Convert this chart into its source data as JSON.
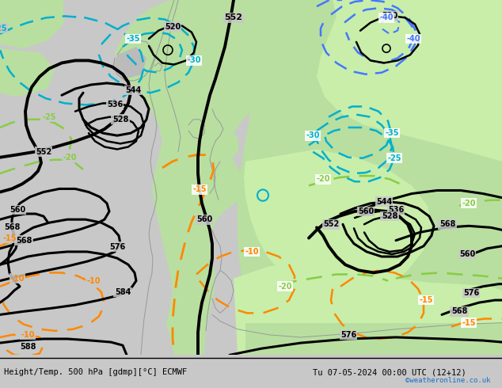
{
  "title_left": "Height/Temp. 500 hPa [gdmp][°C] ECMWF",
  "title_right": "Tu 07-05-2024 00:00 UTC (12+12)",
  "credit": "©weatheronline.co.uk",
  "credit_color": "#1a6ec7",
  "fig_width": 6.34,
  "fig_height": 4.9,
  "dpi": 100,
  "bg_gray": "#c8c8c8",
  "land_green": "#b8dfa0",
  "land_green2": "#c8eeaa",
  "coast_color": "#999999",
  "black_lw": 2.2,
  "thick_lw": 2.8,
  "temp_cyan": "#00b0cc",
  "temp_blue": "#4477ff",
  "temp_green": "#88cc44",
  "temp_orange": "#ff8800"
}
